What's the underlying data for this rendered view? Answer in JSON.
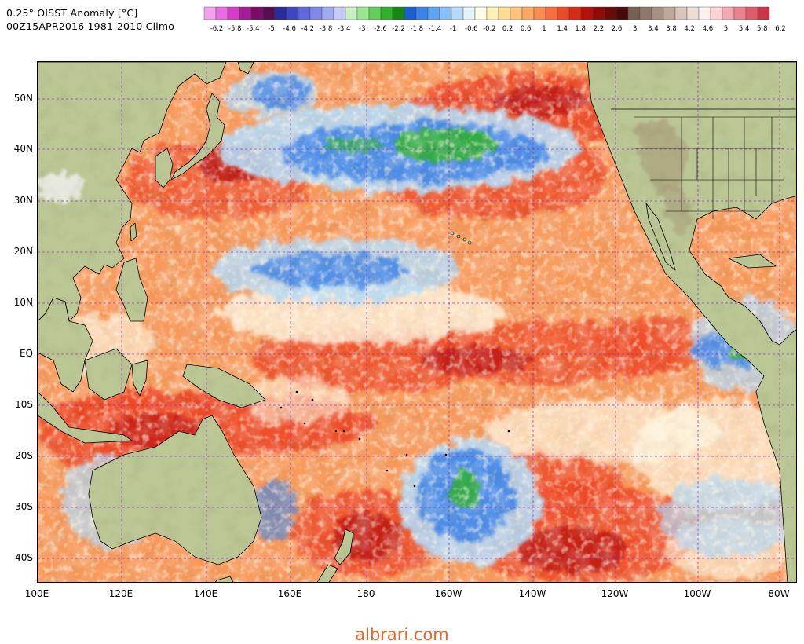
{
  "header": {
    "title": "0.25° OISST Anomaly [°C]",
    "subtitle": "00Z15APR2016 1981-2010 Climo"
  },
  "colorbar": {
    "labels": [
      "-6.2",
      "-5.8",
      "-5.4",
      "-5",
      "-4.6",
      "-4.2",
      "-3.8",
      "-3.4",
      "-3",
      "-2.6",
      "-2.2",
      "-1.8",
      "-1.4",
      "-1",
      "-0.6",
      "-0.2",
      "0.2",
      "0.6",
      "1",
      "1.4",
      "1.8",
      "2.2",
      "2.6",
      "3",
      "3.4",
      "3.8",
      "4.2",
      "4.6",
      "5",
      "5.4",
      "5.8",
      "6.2"
    ],
    "colors": [
      "#f4a0ee",
      "#ec6ae4",
      "#d63cc8",
      "#a81c98",
      "#7a0c6a",
      "#561050",
      "#2a2a9a",
      "#3e46c4",
      "#6068dc",
      "#8088ea",
      "#a0aaf2",
      "#c4caf8",
      "#c8f0c0",
      "#98e690",
      "#60d05a",
      "#2eb22a",
      "#108a10",
      "#1a5fd0",
      "#3a82e8",
      "#5ea4f2",
      "#86c0f6",
      "#b4daf8",
      "#e2f4fa",
      "#fffbe6",
      "#fff0b4",
      "#ffdc90",
      "#ffc47a",
      "#ffa862",
      "#ff8c50",
      "#fa6c3c",
      "#ee4a28",
      "#d82a14",
      "#b81008",
      "#920a08",
      "#6c0a08",
      "#4a0808",
      "#786050",
      "#907868",
      "#a89080",
      "#c0a898",
      "#d8c4b8",
      "#ecdcd4",
      "#fff0f0",
      "#fcd2d6",
      "#f4a8b2",
      "#ec8290",
      "#de5c6e",
      "#cc3448"
    ]
  },
  "axes": {
    "lat_labels": [
      "50N",
      "40N",
      "30N",
      "20N",
      "10N",
      "EQ",
      "10S",
      "20S",
      "30S",
      "40S"
    ],
    "lon_labels": [
      "100E",
      "120E",
      "140E",
      "160E",
      "180",
      "160W",
      "140W",
      "120W",
      "100W",
      "80W"
    ]
  },
  "palette": {
    "land": "#bcc796",
    "land_dark": "#a3ad7e",
    "mountain": "#a89878",
    "snow": "#f2f2f2",
    "cold_strong": "#2eb22a",
    "cold": "#3a82e8",
    "cool": "#b4daf8",
    "neutral": "#fffbe6",
    "warm": "#ffa862",
    "warm_strong": "#ee4a28",
    "hot": "#b81008",
    "grid": "#8a2bb0"
  },
  "watermark": "albrari.com"
}
